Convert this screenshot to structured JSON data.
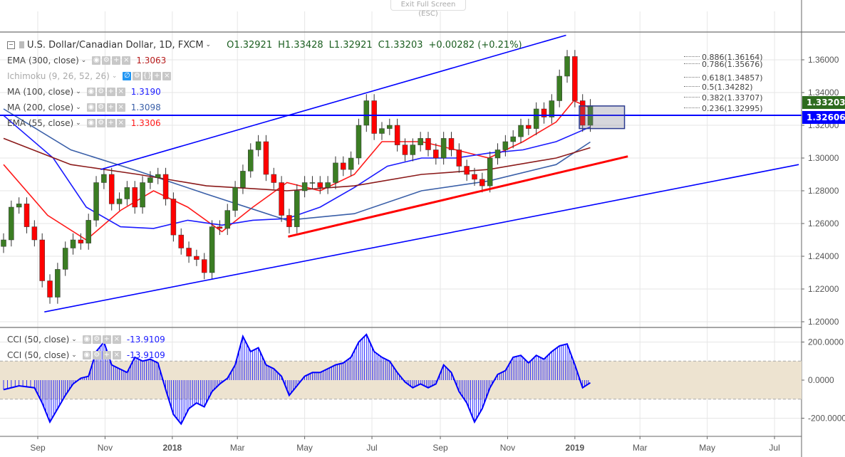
{
  "fullscreen": {
    "exit_label": "Exit Full Screen (ESC)"
  },
  "header": {
    "symbol": "U.S. Dollar/Canadian Dollar, 1D, FXCM",
    "open": "O1.32921",
    "high": "H1.33428",
    "low": "L1.32921",
    "close": "C1.33203",
    "change": "+0.00282 (+0.21%)"
  },
  "indicators": [
    {
      "label": "EMA (300, close)",
      "value": "1.3063",
      "color": "#b71c1c"
    },
    {
      "label": "Ichimoku (9, 26, 52, 26)",
      "value": "",
      "color": "#aaaaaa",
      "hidden": true
    },
    {
      "label": "MA (100, close)",
      "value": "1.3190",
      "color": "#1a1aff"
    },
    {
      "label": "MA (200, close)",
      "value": "1.3098",
      "color": "#3a5fa8"
    },
    {
      "label": "EMA (55, close)",
      "value": "1.3306",
      "color": "#ff1a1a"
    }
  ],
  "cci_legend": [
    {
      "label": "CCI (50, close)",
      "value": "-13.9109"
    },
    {
      "label": "CCI (50, close)",
      "value": "-13.9109"
    }
  ],
  "price_tags": {
    "last": "1.33203",
    "last_color": "#2e6b1f",
    "line": "1.32606",
    "line_color": "#0000ff"
  },
  "fibonacci": [
    "0.886(1.36164)",
    "0.786(1.35676)",
    "0.618(1.34857)",
    "0.5(1.34282)",
    "0.382(1.33707)",
    "0.236(1.32995)"
  ],
  "chart_data": [
    {
      "type": "candlestick",
      "price_axis": {
        "ticks": [
          "1.36000",
          "1.34000",
          "1.32000",
          "1.30000",
          "1.28000",
          "1.26000",
          "1.24000",
          "1.22000",
          "1.20000"
        ],
        "range": [
          1.195,
          1.375
        ]
      },
      "time_axis": {
        "ticks": [
          {
            "label": "Sep",
            "date": "2017-09-01"
          },
          {
            "label": "Nov",
            "date": "2017-11-01"
          },
          {
            "label": "2018",
            "date": "2018-01-01",
            "bold": true
          },
          {
            "label": "Mar",
            "date": "2018-03-01"
          },
          {
            "label": "May",
            "date": "2018-05-01"
          },
          {
            "label": "Jul",
            "date": "2018-07-01"
          },
          {
            "label": "Sep",
            "date": "2018-09-01"
          },
          {
            "label": "Nov",
            "date": "2018-11-01"
          },
          {
            "label": "2019",
            "date": "2019-01-01",
            "bold": true
          },
          {
            "label": "Mar",
            "date": "2019-03-01"
          },
          {
            "label": "May",
            "date": "2019-05-01"
          },
          {
            "label": "Jul",
            "date": "2019-07-01"
          }
        ]
      },
      "colors": {
        "up": "#3b7d23",
        "down": "#ff0000"
      },
      "closes": [
        [
          "2017-08-01",
          1.25
        ],
        [
          "2017-08-08",
          1.27
        ],
        [
          "2017-08-15",
          1.272
        ],
        [
          "2017-08-22",
          1.258
        ],
        [
          "2017-08-29",
          1.25
        ],
        [
          "2017-09-05",
          1.225
        ],
        [
          "2017-09-12",
          1.215
        ],
        [
          "2017-09-19",
          1.232
        ],
        [
          "2017-09-26",
          1.245
        ],
        [
          "2017-10-03",
          1.25
        ],
        [
          "2017-10-10",
          1.248
        ],
        [
          "2017-10-17",
          1.262
        ],
        [
          "2017-10-24",
          1.285
        ],
        [
          "2017-10-31",
          1.29
        ],
        [
          "2017-11-07",
          1.272
        ],
        [
          "2017-11-14",
          1.275
        ],
        [
          "2017-11-21",
          1.282
        ],
        [
          "2017-11-28",
          1.27
        ],
        [
          "2017-12-05",
          1.285
        ],
        [
          "2017-12-12",
          1.288
        ],
        [
          "2017-12-19",
          1.29
        ],
        [
          "2017-12-26",
          1.275
        ],
        [
          "2018-01-02",
          1.253
        ],
        [
          "2018-01-09",
          1.245
        ],
        [
          "2018-01-16",
          1.24
        ],
        [
          "2018-01-23",
          1.238
        ],
        [
          "2018-01-30",
          1.23
        ],
        [
          "2018-02-06",
          1.258
        ],
        [
          "2018-02-13",
          1.257
        ],
        [
          "2018-02-20",
          1.268
        ],
        [
          "2018-02-27",
          1.282
        ],
        [
          "2018-03-06",
          1.292
        ],
        [
          "2018-03-13",
          1.305
        ],
        [
          "2018-03-20",
          1.31
        ],
        [
          "2018-03-27",
          1.29
        ],
        [
          "2018-04-03",
          1.285
        ],
        [
          "2018-04-10",
          1.265
        ],
        [
          "2018-04-17",
          1.258
        ],
        [
          "2018-04-24",
          1.28
        ],
        [
          "2018-05-01",
          1.285
        ],
        [
          "2018-05-08",
          1.285
        ],
        [
          "2018-05-15",
          1.282
        ],
        [
          "2018-05-22",
          1.285
        ],
        [
          "2018-05-29",
          1.297
        ],
        [
          "2018-06-05",
          1.293
        ],
        [
          "2018-06-12",
          1.3
        ],
        [
          "2018-06-19",
          1.32
        ],
        [
          "2018-06-26",
          1.335
        ],
        [
          "2018-07-03",
          1.315
        ],
        [
          "2018-07-10",
          1.318
        ],
        [
          "2018-07-17",
          1.32
        ],
        [
          "2018-07-24",
          1.308
        ],
        [
          "2018-07-31",
          1.302
        ],
        [
          "2018-08-07",
          1.308
        ],
        [
          "2018-08-14",
          1.312
        ],
        [
          "2018-08-21",
          1.305
        ],
        [
          "2018-08-28",
          1.3
        ],
        [
          "2018-09-04",
          1.312
        ],
        [
          "2018-09-11",
          1.305
        ],
        [
          "2018-09-18",
          1.295
        ],
        [
          "2018-09-25",
          1.29
        ],
        [
          "2018-10-02",
          1.287
        ],
        [
          "2018-10-09",
          1.283
        ],
        [
          "2018-10-16",
          1.3
        ],
        [
          "2018-10-23",
          1.305
        ],
        [
          "2018-10-30",
          1.31
        ],
        [
          "2018-11-06",
          1.313
        ],
        [
          "2018-11-13",
          1.32
        ],
        [
          "2018-11-20",
          1.318
        ],
        [
          "2018-11-27",
          1.33
        ],
        [
          "2018-12-04",
          1.325
        ],
        [
          "2018-12-11",
          1.335
        ],
        [
          "2018-12-18",
          1.35
        ],
        [
          "2018-12-25",
          1.362
        ],
        [
          "2019-01-01",
          1.335
        ],
        [
          "2019-01-08",
          1.32
        ],
        [
          "2019-01-15",
          1.332
        ]
      ],
      "moving_averages": [
        {
          "name": "EMA (55, close)",
          "color": "#ff1a1a",
          "values": [
            [
              "2017-08-01",
              1.296
            ],
            [
              "2017-09-10",
              1.265
            ],
            [
              "2017-10-15",
              1.25
            ],
            [
              "2017-11-15",
              1.268
            ],
            [
              "2017-12-15",
              1.28
            ],
            [
              "2018-01-15",
              1.27
            ],
            [
              "2018-02-15",
              1.255
            ],
            [
              "2018-03-15",
              1.27
            ],
            [
              "2018-04-15",
              1.285
            ],
            [
              "2018-05-15",
              1.28
            ],
            [
              "2018-06-15",
              1.29
            ],
            [
              "2018-07-10",
              1.31
            ],
            [
              "2018-08-15",
              1.31
            ],
            [
              "2018-09-15",
              1.305
            ],
            [
              "2018-10-15",
              1.3
            ],
            [
              "2018-11-15",
              1.31
            ],
            [
              "2018-12-15",
              1.322
            ],
            [
              "2018-12-31",
              1.335
            ],
            [
              "2019-01-15",
              1.3306
            ]
          ]
        },
        {
          "name": "MA (100, close)",
          "color": "#1a1aff",
          "values": [
            [
              "2017-08-01",
              1.326
            ],
            [
              "2017-09-15",
              1.3
            ],
            [
              "2017-10-15",
              1.27
            ],
            [
              "2017-11-15",
              1.258
            ],
            [
              "2017-12-15",
              1.257
            ],
            [
              "2018-01-15",
              1.262
            ],
            [
              "2018-02-15",
              1.259
            ],
            [
              "2018-03-15",
              1.262
            ],
            [
              "2018-04-15",
              1.263
            ],
            [
              "2018-05-15",
              1.27
            ],
            [
              "2018-06-15",
              1.282
            ],
            [
              "2018-07-15",
              1.295
            ],
            [
              "2018-08-15",
              1.3
            ],
            [
              "2018-09-15",
              1.3
            ],
            [
              "2018-10-15",
              1.303
            ],
            [
              "2018-11-15",
              1.305
            ],
            [
              "2018-12-15",
              1.31
            ],
            [
              "2019-01-15",
              1.319
            ]
          ]
        },
        {
          "name": "MA (200, close)",
          "color": "#3a5fa8",
          "values": [
            [
              "2017-08-01",
              1.33
            ],
            [
              "2017-10-01",
              1.305
            ],
            [
              "2017-12-01",
              1.292
            ],
            [
              "2018-02-01",
              1.278
            ],
            [
              "2018-04-15",
              1.262
            ],
            [
              "2018-06-15",
              1.266
            ],
            [
              "2018-08-15",
              1.28
            ],
            [
              "2018-10-15",
              1.286
            ],
            [
              "2018-12-15",
              1.296
            ],
            [
              "2019-01-15",
              1.3098
            ]
          ]
        },
        {
          "name": "EMA (300, close)",
          "color": "#8b1a1a",
          "values": [
            [
              "2017-08-01",
              1.312
            ],
            [
              "2017-10-01",
              1.296
            ],
            [
              "2017-12-01",
              1.29
            ],
            [
              "2018-02-01",
              1.283
            ],
            [
              "2018-04-15",
              1.28
            ],
            [
              "2018-06-15",
              1.283
            ],
            [
              "2018-08-15",
              1.29
            ],
            [
              "2018-10-15",
              1.293
            ],
            [
              "2018-12-15",
              1.3
            ],
            [
              "2019-01-15",
              1.3063
            ]
          ]
        }
      ],
      "drawings": [
        {
          "name": "upper-channel-line",
          "color": "#0000ff",
          "from": [
            "2017-10-28",
            1.293
          ],
          "to": [
            "2018-12-24",
            1.375
          ]
        },
        {
          "name": "lower-channel-line",
          "color": "#0000ff",
          "from": [
            "2017-09-07",
            1.206
          ],
          "to": [
            "2019-07-23",
            1.296
          ]
        },
        {
          "name": "support-trend-line",
          "color": "#ff0000",
          "from": [
            "2018-04-16",
            1.252
          ],
          "to": [
            "2019-02-18",
            1.301
          ]
        },
        {
          "name": "horizontal-level-line",
          "color": "#0000ff",
          "price": 1.32606
        },
        {
          "name": "consolidation-box",
          "from": [
            "2019-01-05",
            1.3318
          ],
          "to": [
            "2019-02-15",
            1.318
          ]
        }
      ]
    },
    {
      "type": "line+histogram",
      "name": "CCI (50, close)",
      "axis": {
        "ticks": [
          "200.0000",
          "0.0000",
          "-200.0000"
        ],
        "range": [
          -300,
          300
        ],
        "band": [
          -100,
          100
        ]
      },
      "color": "#0000ff",
      "values": [
        [
          "2017-08-01",
          -50
        ],
        [
          "2017-08-15",
          -30
        ],
        [
          "2017-08-29",
          -40
        ],
        [
          "2017-09-05",
          -120
        ],
        [
          "2017-09-12",
          -220
        ],
        [
          "2017-09-19",
          -150
        ],
        [
          "2017-09-26",
          -80
        ],
        [
          "2017-10-03",
          -20
        ],
        [
          "2017-10-10",
          10
        ],
        [
          "2017-10-17",
          20
        ],
        [
          "2017-10-24",
          150
        ],
        [
          "2017-10-31",
          200
        ],
        [
          "2017-11-07",
          80
        ],
        [
          "2017-11-14",
          60
        ],
        [
          "2017-11-21",
          40
        ],
        [
          "2017-11-28",
          120
        ],
        [
          "2017-12-05",
          100
        ],
        [
          "2017-12-12",
          110
        ],
        [
          "2017-12-19",
          90
        ],
        [
          "2017-12-26",
          -50
        ],
        [
          "2018-01-02",
          -180
        ],
        [
          "2018-01-09",
          -230
        ],
        [
          "2018-01-16",
          -150
        ],
        [
          "2018-01-23",
          -120
        ],
        [
          "2018-01-30",
          -140
        ],
        [
          "2018-02-06",
          -60
        ],
        [
          "2018-02-13",
          -20
        ],
        [
          "2018-02-20",
          10
        ],
        [
          "2018-02-27",
          80
        ],
        [
          "2018-03-06",
          230
        ],
        [
          "2018-03-13",
          150
        ],
        [
          "2018-03-20",
          170
        ],
        [
          "2018-03-27",
          80
        ],
        [
          "2018-04-03",
          60
        ],
        [
          "2018-04-10",
          20
        ],
        [
          "2018-04-17",
          -80
        ],
        [
          "2018-04-24",
          -30
        ],
        [
          "2018-05-01",
          20
        ],
        [
          "2018-05-08",
          40
        ],
        [
          "2018-05-15",
          40
        ],
        [
          "2018-05-22",
          60
        ],
        [
          "2018-05-29",
          80
        ],
        [
          "2018-06-05",
          90
        ],
        [
          "2018-06-12",
          120
        ],
        [
          "2018-06-19",
          200
        ],
        [
          "2018-06-26",
          240
        ],
        [
          "2018-07-03",
          150
        ],
        [
          "2018-07-10",
          120
        ],
        [
          "2018-07-17",
          100
        ],
        [
          "2018-07-24",
          40
        ],
        [
          "2018-07-31",
          -10
        ],
        [
          "2018-08-07",
          -40
        ],
        [
          "2018-08-14",
          -20
        ],
        [
          "2018-08-21",
          -40
        ],
        [
          "2018-08-28",
          -20
        ],
        [
          "2018-09-04",
          80
        ],
        [
          "2018-09-11",
          40
        ],
        [
          "2018-09-18",
          -60
        ],
        [
          "2018-09-25",
          -120
        ],
        [
          "2018-10-02",
          -220
        ],
        [
          "2018-10-09",
          -150
        ],
        [
          "2018-10-16",
          -40
        ],
        [
          "2018-10-23",
          30
        ],
        [
          "2018-10-30",
          50
        ],
        [
          "2018-11-06",
          120
        ],
        [
          "2018-11-13",
          130
        ],
        [
          "2018-11-20",
          90
        ],
        [
          "2018-11-27",
          130
        ],
        [
          "2018-12-04",
          110
        ],
        [
          "2018-12-11",
          150
        ],
        [
          "2018-12-18",
          180
        ],
        [
          "2018-12-25",
          190
        ],
        [
          "2019-01-01",
          80
        ],
        [
          "2019-01-08",
          -40
        ],
        [
          "2019-01-15",
          -14
        ]
      ]
    }
  ]
}
